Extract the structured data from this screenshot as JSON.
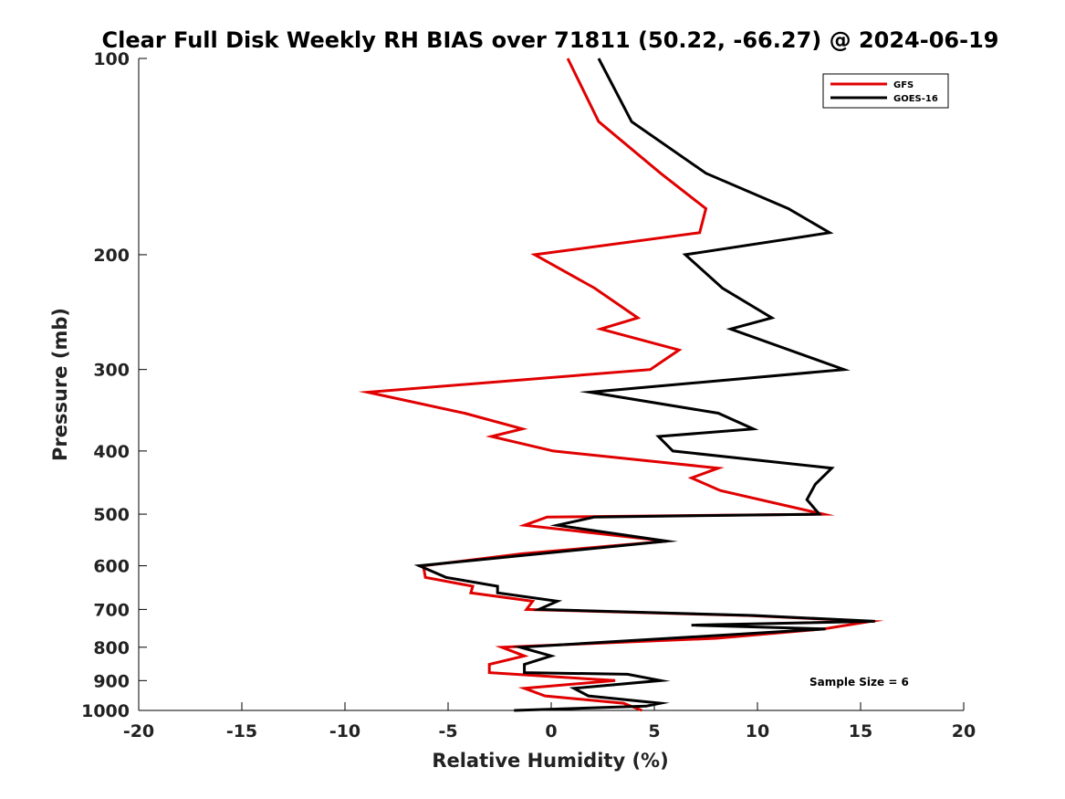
{
  "chart_data": {
    "type": "line",
    "title": "Clear Full Disk Weekly RH BIAS over 71811 (50.22, -66.27) @ 2024-06-19",
    "xlabel": "Relative Humidity (%)",
    "ylabel": "Pressure (mb)",
    "xlim": [
      -20,
      20
    ],
    "ylim": [
      100,
      1000
    ],
    "y_scale": "log",
    "y_reversed": true,
    "xticks": [
      -20,
      -15,
      -10,
      -5,
      0,
      5,
      10,
      15,
      20
    ],
    "yticks": [
      100,
      200,
      300,
      400,
      500,
      600,
      700,
      800,
      900,
      1000
    ],
    "grid": false,
    "legend_position": "top-right",
    "annotation": "Sample Size = 6",
    "series": [
      {
        "name": "GFS",
        "color": "#e00000",
        "points": [
          [
            0.8,
            100
          ],
          [
            2.3,
            125
          ],
          [
            5.3,
            150
          ],
          [
            7.5,
            170
          ],
          [
            7.2,
            185
          ],
          [
            -0.8,
            200
          ],
          [
            2.1,
            225
          ],
          [
            4.2,
            250
          ],
          [
            2.4,
            260
          ],
          [
            6.2,
            280
          ],
          [
            4.8,
            300
          ],
          [
            -8.9,
            325
          ],
          [
            -4.2,
            350
          ],
          [
            -1.4,
            370
          ],
          [
            -2.9,
            380
          ],
          [
            0.1,
            400
          ],
          [
            8.1,
            425
          ],
          [
            6.8,
            440
          ],
          [
            8.2,
            460
          ],
          [
            13.2,
            500
          ],
          [
            -0.2,
            505
          ],
          [
            -1.3,
            520
          ],
          [
            5.6,
            550
          ],
          [
            -1.4,
            575
          ],
          [
            -6.2,
            600
          ],
          [
            -6.1,
            625
          ],
          [
            -3.8,
            645
          ],
          [
            -3.9,
            660
          ],
          [
            -0.9,
            680
          ],
          [
            -1.2,
            700
          ],
          [
            9.5,
            715
          ],
          [
            15.5,
            730
          ],
          [
            13.2,
            750
          ],
          [
            8.0,
            775
          ],
          [
            -2.4,
            800
          ],
          [
            -1.3,
            825
          ],
          [
            -3.0,
            850
          ],
          [
            -3.0,
            875
          ],
          [
            3.1,
            900
          ],
          [
            -1.3,
            925
          ],
          [
            -0.3,
            950
          ],
          [
            3.5,
            975
          ],
          [
            4.4,
            1000
          ]
        ]
      },
      {
        "name": "GOES-16",
        "color": "#000000",
        "points": [
          [
            2.3,
            100
          ],
          [
            3.9,
            125
          ],
          [
            7.5,
            150
          ],
          [
            11.5,
            170
          ],
          [
            13.5,
            185
          ],
          [
            6.5,
            200
          ],
          [
            8.3,
            225
          ],
          [
            10.7,
            250
          ],
          [
            8.7,
            260
          ],
          [
            14.2,
            300
          ],
          [
            1.9,
            325
          ],
          [
            8.1,
            350
          ],
          [
            9.8,
            370
          ],
          [
            5.2,
            380
          ],
          [
            5.9,
            400
          ],
          [
            13.6,
            425
          ],
          [
            12.8,
            450
          ],
          [
            12.4,
            475
          ],
          [
            13.0,
            500
          ],
          [
            2.1,
            505
          ],
          [
            0.3,
            520
          ],
          [
            5.6,
            550
          ],
          [
            -6.4,
            600
          ],
          [
            -5.1,
            625
          ],
          [
            -2.6,
            645
          ],
          [
            -2.6,
            660
          ],
          [
            0.3,
            680
          ],
          [
            -0.6,
            700
          ],
          [
            9.8,
            715
          ],
          [
            15.7,
            730
          ],
          [
            6.8,
            740
          ],
          [
            13.3,
            750
          ],
          [
            -1.5,
            800
          ],
          [
            0.0,
            825
          ],
          [
            -1.3,
            850
          ],
          [
            -1.3,
            875
          ],
          [
            3.7,
            880
          ],
          [
            5.3,
            900
          ],
          [
            1.1,
            925
          ],
          [
            1.8,
            950
          ],
          [
            5.3,
            975
          ],
          [
            4.6,
            985
          ],
          [
            -1.8,
            1000
          ]
        ]
      }
    ]
  }
}
